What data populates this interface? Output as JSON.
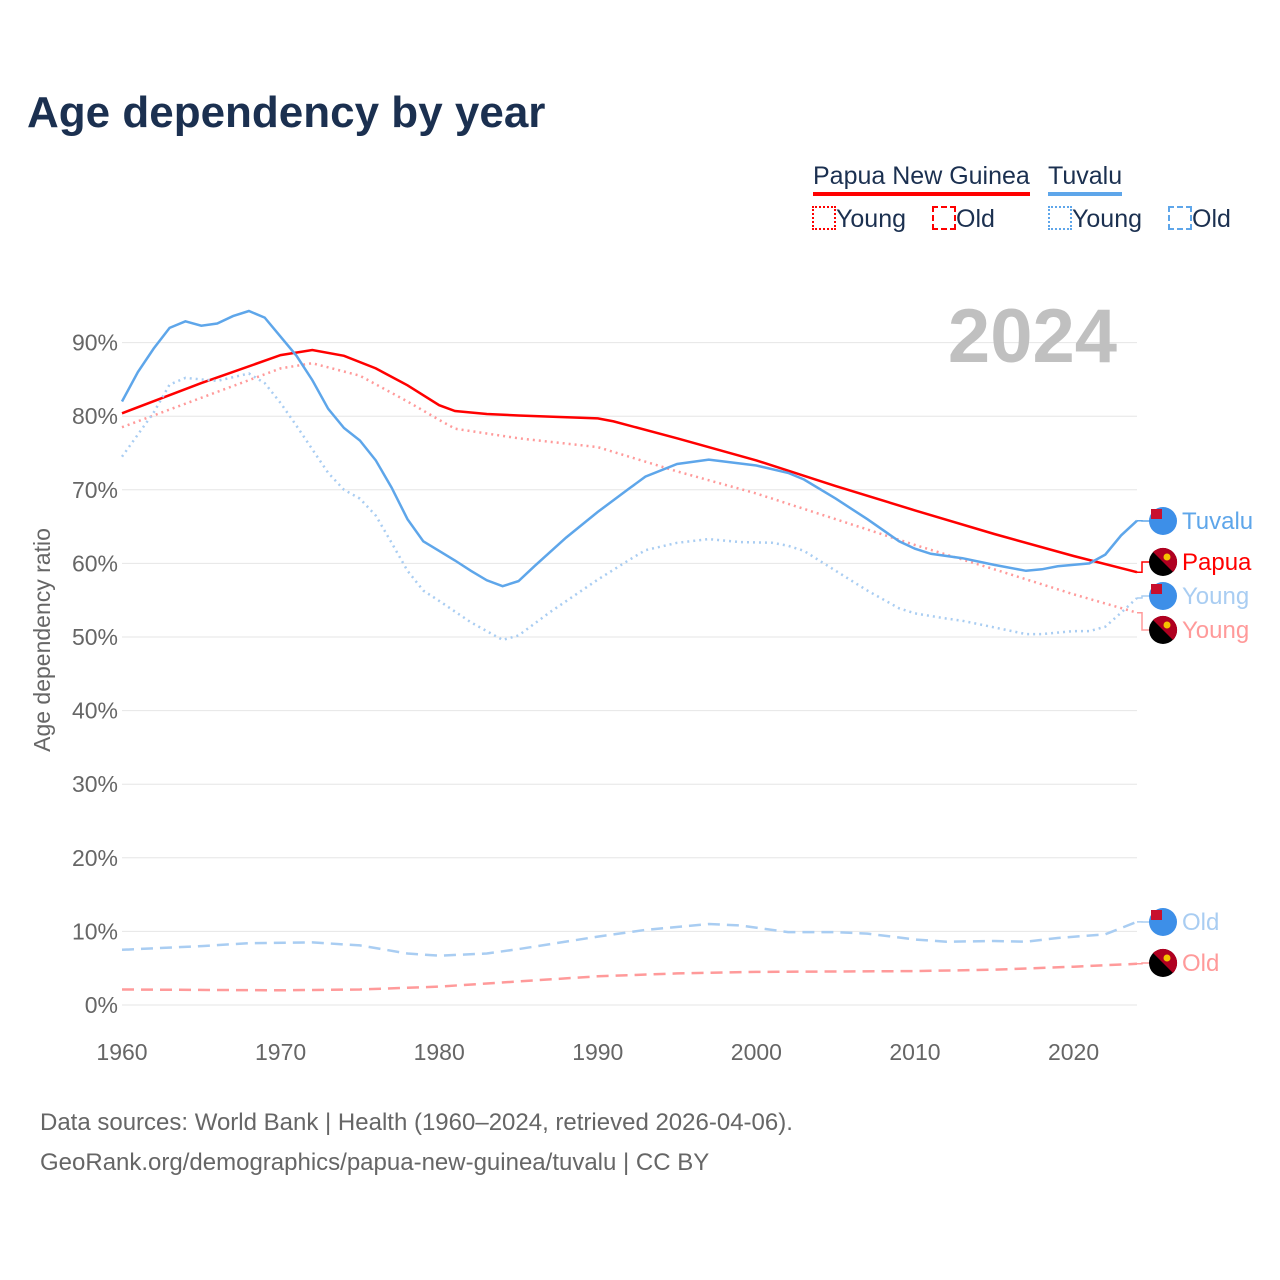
{
  "title": "Age dependency by year",
  "legend": {
    "groups": [
      {
        "name": "Papua New Guinea",
        "color": "#ff0000",
        "young": "Young",
        "old": "Old"
      },
      {
        "name": "Tuvalu",
        "color": "#5ea6ea",
        "young": "Young",
        "old": "Old"
      }
    ]
  },
  "year_label": "2024",
  "footer": {
    "line1": "Data sources: World Bank | Health (1960–2024, retrieved 2026-04-06).",
    "line2": "GeoRank.org/demographics/papua-new-guinea/tuvalu | CC BY"
  },
  "chart_data": {
    "type": "line",
    "title": "Age dependency by year",
    "xlabel": "",
    "ylabel": "Age dependency ratio",
    "xlim": [
      1960,
      2024
    ],
    "ylim": [
      0,
      95
    ],
    "xticks": [
      "1960",
      "1970",
      "1980",
      "1990",
      "2000",
      "2010",
      "2020"
    ],
    "yticks": [
      "0%",
      "10%",
      "20%",
      "30%",
      "40%",
      "50%",
      "60%",
      "70%",
      "80%",
      "90%"
    ],
    "series": [
      {
        "name": "Papua New Guinea",
        "end_label": "Papua",
        "style": "solid",
        "color": "#ff0000",
        "x": [
          1960,
          1965,
          1970,
          1972,
          1974,
          1976,
          1978,
          1980,
          1981,
          1983,
          1985,
          1990,
          1991,
          1995,
          2000,
          2005,
          2010,
          2015,
          2020,
          2024
        ],
        "y": [
          80.4,
          84.5,
          88.3,
          89.0,
          88.2,
          86.5,
          84.2,
          81.5,
          80.7,
          80.3,
          80.1,
          79.7,
          79.3,
          77.0,
          74.0,
          70.5,
          67.2,
          64.0,
          61.0,
          58.8
        ]
      },
      {
        "name": "Papua New Guinea Young",
        "end_label": "Young",
        "style": "dotted",
        "color": "#ff9a9a",
        "x": [
          1960,
          1965,
          1970,
          1972,
          1975,
          1978,
          1980,
          1981,
          1985,
          1990,
          1995,
          2000,
          2005,
          2010,
          2015,
          2020,
          2024
        ],
        "y": [
          78.5,
          82.5,
          86.5,
          87.2,
          85.5,
          82,
          79.5,
          78.3,
          77.0,
          75.8,
          72.5,
          69.5,
          66,
          62.5,
          59.2,
          55.8,
          53.3
        ]
      },
      {
        "name": "Papua New Guinea Old",
        "end_label": "Old",
        "style": "dashed",
        "color": "#ff9a9a",
        "x": [
          1960,
          1970,
          1975,
          1980,
          1985,
          1990,
          1995,
          2000,
          2010,
          2015,
          2020,
          2024
        ],
        "y": [
          2.1,
          2.0,
          2.1,
          2.5,
          3.2,
          3.9,
          4.3,
          4.5,
          4.6,
          4.8,
          5.2,
          5.6
        ]
      },
      {
        "name": "Tuvalu",
        "end_label": "Tuvalu",
        "style": "solid",
        "color": "#5ea6ea",
        "x": [
          1960,
          1961,
          1962,
          1963,
          1964,
          1965,
          1966,
          1967,
          1968,
          1969,
          1970,
          1971,
          1972,
          1973,
          1974,
          1975,
          1976,
          1977,
          1978,
          1979,
          1980,
          1981,
          1982,
          1983,
          1984,
          1985,
          1986,
          1988,
          1990,
          1992,
          1993,
          1995,
          1997,
          2000,
          2002,
          2003,
          2005,
          2007,
          2009,
          2010,
          2011,
          2013,
          2015,
          2017,
          2018,
          2019,
          2021,
          2022,
          2023,
          2024
        ],
        "y": [
          82,
          86,
          89.2,
          92,
          92.9,
          92.3,
          92.6,
          93.6,
          94.3,
          93.4,
          90.8,
          88.2,
          84.9,
          81,
          78.4,
          76.7,
          74,
          70.3,
          66,
          63,
          61.7,
          60.4,
          59,
          57.7,
          56.9,
          57.6,
          59.6,
          63.5,
          67,
          70.2,
          71.8,
          73.5,
          74.1,
          73.3,
          72.3,
          71.4,
          68.8,
          66,
          63,
          62,
          61.3,
          60.7,
          59.8,
          59.0,
          59.2,
          59.6,
          60,
          61.2,
          63.8,
          65.8
        ]
      },
      {
        "name": "Tuvalu Young",
        "end_label": "Young",
        "style": "dotted",
        "color": "#a9cdf2",
        "x": [
          1960,
          1962,
          1963,
          1964,
          1966,
          1968,
          1969,
          1970,
          1971,
          1972,
          1973,
          1974,
          1975,
          1976,
          1977,
          1978,
          1979,
          1980,
          1982,
          1984,
          1985,
          1987,
          1990,
          1992,
          1993,
          1995,
          1997,
          1999,
          2001,
          2002,
          2003,
          2005,
          2007,
          2009,
          2010,
          2012,
          2013,
          2015,
          2017,
          2018,
          2020,
          2021,
          2022,
          2023,
          2024
        ],
        "y": [
          74.5,
          80.5,
          84.3,
          85.2,
          84.8,
          85.8,
          84.5,
          81.8,
          78.7,
          75.5,
          72.3,
          70,
          68.8,
          66.5,
          62.8,
          59,
          56.3,
          54.9,
          52,
          49.6,
          50.2,
          53.4,
          57.8,
          60.5,
          61.8,
          62.8,
          63.3,
          62.9,
          62.8,
          62.4,
          61.7,
          59,
          56.3,
          53.9,
          53.2,
          52.5,
          52.2,
          51.3,
          50.4,
          50.4,
          50.8,
          50.8,
          51.4,
          53.3,
          55.3
        ]
      },
      {
        "name": "Tuvalu Old",
        "end_label": "Old",
        "style": "dashed",
        "color": "#a9cdf2",
        "x": [
          1960,
          1965,
          1968,
          1972,
          1975,
          1978,
          1980,
          1983,
          1985,
          1990,
          1993,
          1997,
          1999,
          2002,
          2005,
          2007,
          2010,
          2012,
          2015,
          2017,
          2019,
          2022,
          2024
        ],
        "y": [
          7.5,
          8,
          8.4,
          8.5,
          8.1,
          7.0,
          6.7,
          7.0,
          7.6,
          9.3,
          10.2,
          11.0,
          10.8,
          9.9,
          9.9,
          9.7,
          8.9,
          8.6,
          8.7,
          8.6,
          9.1,
          9.6,
          11.3
        ]
      }
    ]
  }
}
